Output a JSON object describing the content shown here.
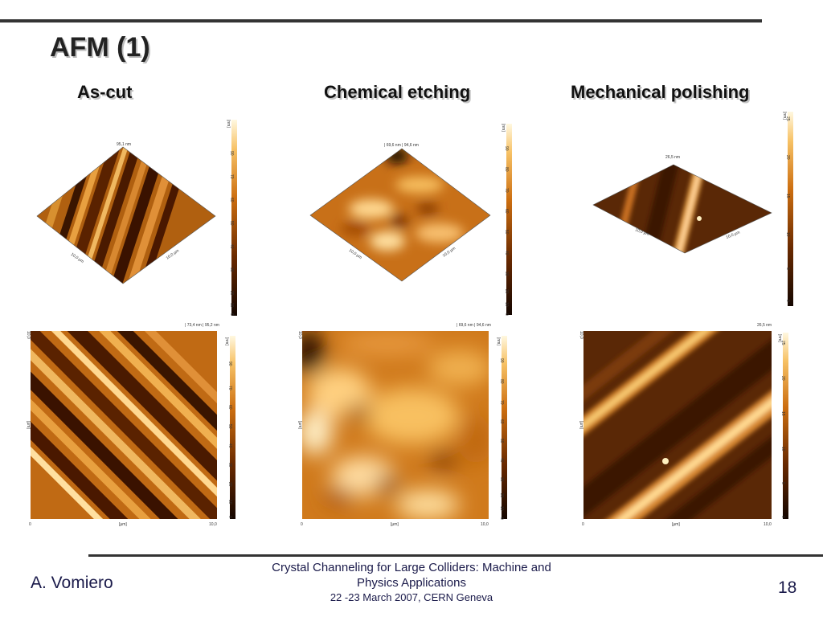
{
  "slide": {
    "title": "AFM (1)",
    "columns": [
      {
        "heading": "As-cut"
      },
      {
        "heading": "Chemical etching"
      },
      {
        "heading": "Mechanical polishing"
      }
    ],
    "panels": {
      "ascut_3d": {
        "height_label": "95,1 nm",
        "axis_a": "10,0 µm",
        "axis_b": "10,0 µm",
        "scale_unit": "[nm]",
        "scale_ticks": [
          "90",
          "70",
          "60",
          "50",
          "40",
          "30",
          "20",
          "10",
          "0"
        ]
      },
      "etch_3d": {
        "height_label": "| 69,6 nm | 94,6 nm",
        "axis_a": "10,0 µm",
        "axis_b": "10,0 µm",
        "scale_unit": "[nm]",
        "scale_ticks": [
          "90",
          "80",
          "70",
          "60",
          "50",
          "40",
          "30",
          "20",
          "10",
          "0"
        ]
      },
      "polish_3d": {
        "height_label": "26,5 nm",
        "axis_a": "10,0 µm",
        "axis_b": "10,0 µm",
        "scale_unit": "[nm]",
        "scale_ticks": [
          "25",
          "20",
          "15",
          "10",
          "5",
          "0"
        ]
      },
      "ascut_2d": {
        "height_label": "| 73,4 nm | 95,2 nm",
        "y_top": "10,0",
        "y_unit": "[µm]",
        "x_zero": "0",
        "x_unit": "[µm]",
        "x_end": "10,0",
        "scale_unit": "[nm]",
        "scale_ticks": [
          "90",
          "70",
          "60",
          "50",
          "40",
          "30",
          "20",
          "10",
          "0"
        ]
      },
      "etch_2d": {
        "height_label": "| 69,6 nm | 94,6 nm",
        "y_top": "10,0",
        "y_unit": "[µm]",
        "x_zero": "0",
        "x_unit": "[µm]",
        "x_end": "10,0",
        "scale_unit": "[nm]",
        "scale_ticks": [
          "90",
          "80",
          "70",
          "60",
          "50",
          "40",
          "30",
          "20",
          "10",
          "0"
        ]
      },
      "polish_2d": {
        "height_label": "26,5 nm",
        "y_top": "10,0",
        "y_unit": "[µm]",
        "x_zero": "0",
        "x_unit": "[µm]",
        "x_end": "10,0",
        "scale_unit": "[nm]",
        "scale_ticks": [
          "25",
          "20",
          "15",
          "10",
          "5",
          "0"
        ]
      }
    },
    "colors": {
      "dark": "#2a1200",
      "mid": "#b8600a",
      "light": "#ffe9a8",
      "rule": "#333333"
    }
  },
  "footer": {
    "author": "A. Vomiero",
    "conference_line1": "Crystal Channeling for Large Colliders: Machine and",
    "conference_line2": "Physics Applications",
    "conference_line3": "22 -23  March 2007, CERN Geneva",
    "page_number": "18"
  }
}
